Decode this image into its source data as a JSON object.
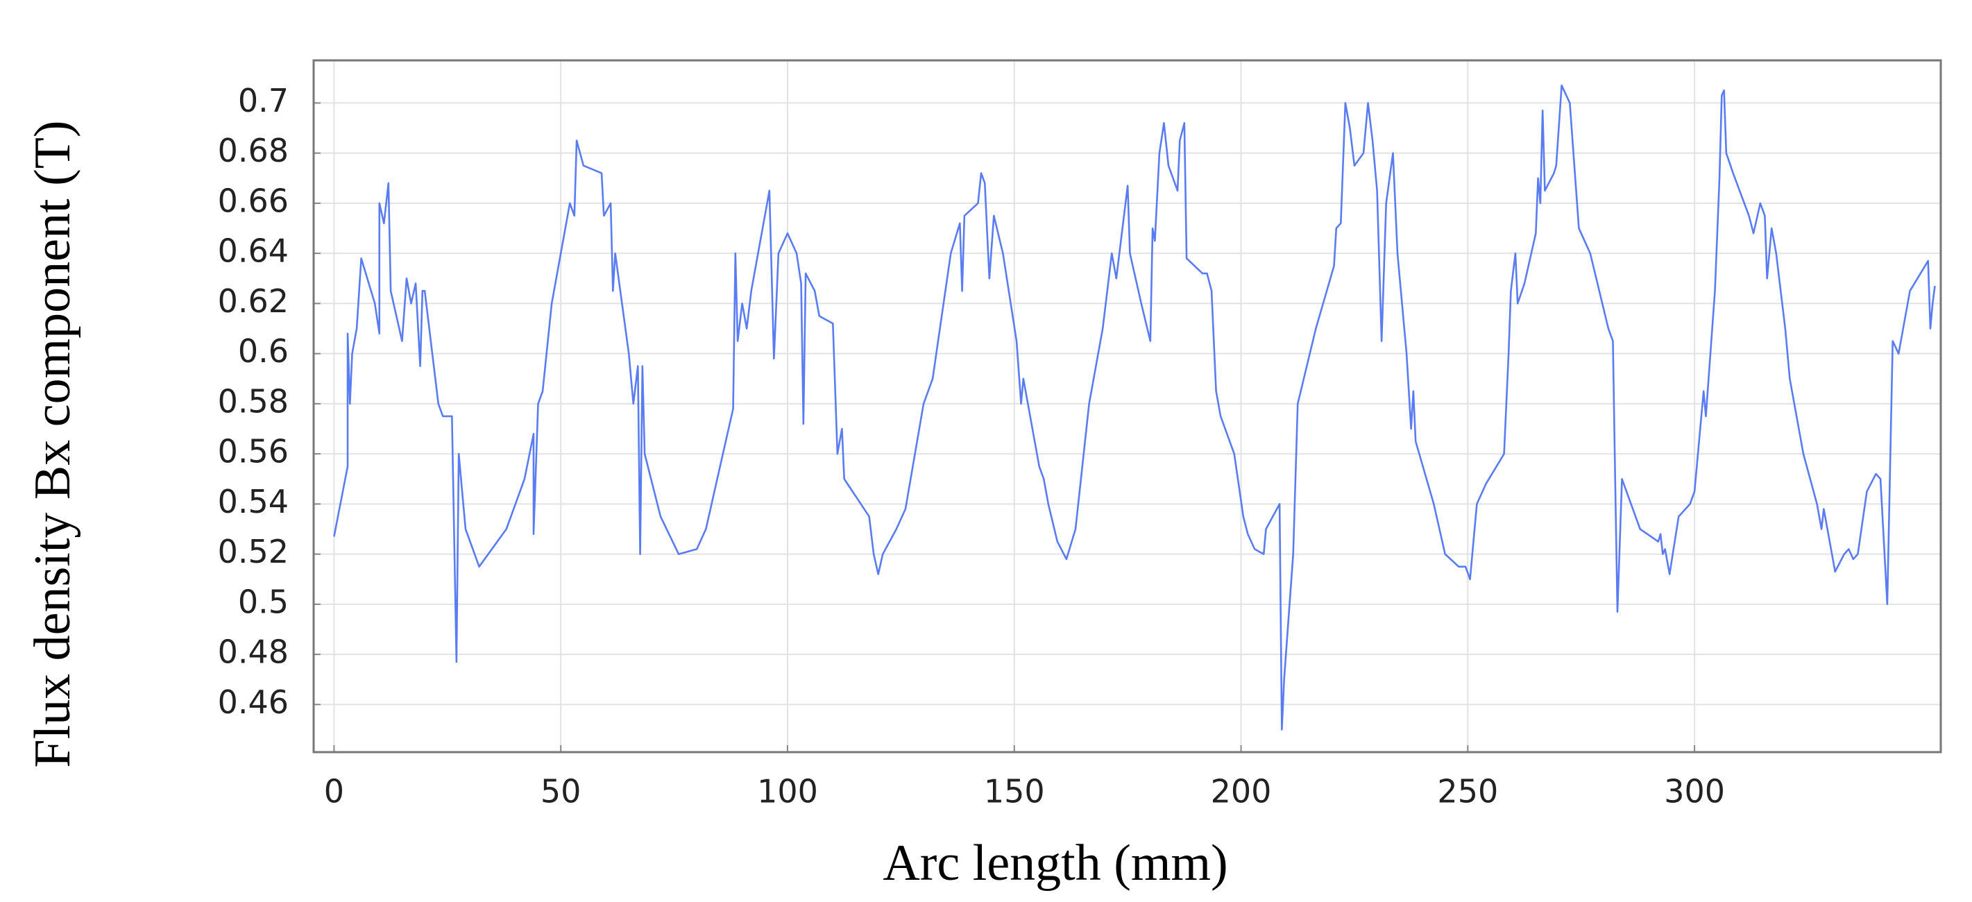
{
  "chart_data": {
    "type": "line",
    "xlabel": "Arc length (mm)",
    "ylabel": "Flux density Bx component (T)",
    "xlim": [
      -4.5,
      354.3
    ],
    "ylim": [
      0.441,
      0.717
    ],
    "xticks": [
      0,
      50,
      100,
      150,
      200,
      250,
      300
    ],
    "yticks": [
      0.46,
      0.48,
      0.5,
      0.52,
      0.54,
      0.56,
      0.58,
      0.6,
      0.62,
      0.64,
      0.66,
      0.68,
      0.7
    ],
    "grid": true,
    "series": [
      {
        "color": "#5a7cf2",
        "x": [
          0,
          3,
          3,
          3.5,
          4,
          5,
          6,
          9,
          10,
          10,
          11,
          12,
          12.5,
          15,
          16,
          17,
          18,
          19,
          19.5,
          20,
          22,
          23,
          24,
          26,
          27,
          27.5,
          29,
          32,
          38,
          42,
          44,
          44,
          45,
          46,
          48,
          52,
          53,
          53.5,
          55,
          59,
          59.5,
          61,
          61.5,
          62,
          65,
          66,
          67,
          67.5,
          68,
          68.5,
          72,
          76,
          80,
          82,
          87,
          88,
          88.5,
          89,
          90,
          91,
          92,
          96,
          97,
          98,
          100,
          102,
          103,
          103.5,
          104,
          106,
          107,
          110,
          111,
          112,
          112.5,
          118,
          119,
          120,
          121,
          124,
          126,
          130,
          132,
          134,
          136,
          138,
          138.5,
          139,
          142,
          142.7,
          143.5,
          144.5,
          145.5,
          147.5,
          150.5,
          151.5,
          152,
          155.5,
          156.5,
          157.5,
          159.5,
          161.5,
          163.5,
          166.5,
          169.5,
          171.5,
          172.5,
          175,
          175.5,
          178,
          180,
          180.5,
          181,
          182,
          183,
          184,
          186,
          186.5,
          187.5,
          188,
          191.5,
          192.5,
          193.5,
          194.5,
          195.5,
          198.5,
          200.5,
          201.5,
          203,
          205,
          205.5,
          208.5,
          209,
          209.5,
          211.5,
          212.5,
          216.5,
          220.5,
          221,
          222,
          223,
          224,
          225,
          227,
          228,
          229,
          230,
          231,
          232,
          233.5,
          234.5,
          236.5,
          237.5,
          238,
          238.5,
          242.5,
          245,
          248,
          249.5,
          250.5,
          252,
          254,
          258,
          259,
          259.5,
          260.5,
          261,
          262.5,
          265,
          265.5,
          266,
          266.5,
          267,
          269,
          269.5,
          270.7,
          272.5,
          274.5,
          277,
          281,
          282,
          282.5,
          283,
          284,
          286,
          288,
          292,
          292.5,
          293,
          293.5,
          294.5,
          296.5,
          299,
          300,
          302,
          302.5,
          303.5,
          304.5,
          305.5,
          306,
          306.5,
          307,
          308.5,
          312,
          313,
          314.5,
          315.5,
          316,
          317,
          318,
          320,
          321,
          324,
          327,
          328,
          328.5,
          331,
          333,
          334,
          335,
          336,
          338,
          340,
          341,
          342.5,
          343.7,
          345,
          347.5,
          351.5,
          352,
          352.5,
          353
        ],
        "values": [
          0.527,
          0.555,
          0.608,
          0.58,
          0.6,
          0.61,
          0.638,
          0.62,
          0.608,
          0.66,
          0.652,
          0.668,
          0.625,
          0.605,
          0.63,
          0.62,
          0.628,
          0.595,
          0.625,
          0.625,
          0.595,
          0.58,
          0.575,
          0.575,
          0.477,
          0.56,
          0.53,
          0.515,
          0.53,
          0.55,
          0.568,
          0.528,
          0.58,
          0.585,
          0.62,
          0.66,
          0.655,
          0.685,
          0.675,
          0.672,
          0.655,
          0.66,
          0.625,
          0.64,
          0.6,
          0.58,
          0.595,
          0.52,
          0.595,
          0.56,
          0.535,
          0.52,
          0.522,
          0.53,
          0.57,
          0.578,
          0.64,
          0.605,
          0.62,
          0.61,
          0.625,
          0.665,
          0.598,
          0.64,
          0.648,
          0.64,
          0.628,
          0.572,
          0.632,
          0.625,
          0.615,
          0.612,
          0.56,
          0.57,
          0.55,
          0.535,
          0.52,
          0.512,
          0.52,
          0.53,
          0.538,
          0.58,
          0.59,
          0.615,
          0.64,
          0.652,
          0.625,
          0.655,
          0.66,
          0.672,
          0.668,
          0.63,
          0.655,
          0.64,
          0.605,
          0.58,
          0.59,
          0.555,
          0.55,
          0.54,
          0.525,
          0.518,
          0.53,
          0.58,
          0.61,
          0.64,
          0.63,
          0.667,
          0.64,
          0.62,
          0.605,
          0.65,
          0.645,
          0.68,
          0.692,
          0.675,
          0.665,
          0.685,
          0.692,
          0.638,
          0.632,
          0.632,
          0.625,
          0.585,
          0.575,
          0.56,
          0.535,
          0.528,
          0.522,
          0.52,
          0.53,
          0.54,
          0.45,
          0.47,
          0.52,
          0.58,
          0.61,
          0.635,
          0.65,
          0.652,
          0.7,
          0.69,
          0.675,
          0.68,
          0.7,
          0.685,
          0.665,
          0.605,
          0.66,
          0.68,
          0.64,
          0.6,
          0.57,
          0.585,
          0.565,
          0.54,
          0.52,
          0.515,
          0.515,
          0.51,
          0.54,
          0.548,
          0.56,
          0.6,
          0.625,
          0.64,
          0.62,
          0.628,
          0.648,
          0.67,
          0.66,
          0.697,
          0.665,
          0.672,
          0.675,
          0.707,
          0.7,
          0.65,
          0.64,
          0.61,
          0.605,
          0.55,
          0.497,
          0.55,
          0.54,
          0.53,
          0.525,
          0.528,
          0.52,
          0.522,
          0.512,
          0.535,
          0.54,
          0.545,
          0.585,
          0.575,
          0.6,
          0.625,
          0.67,
          0.703,
          0.705,
          0.68,
          0.672,
          0.655,
          0.648,
          0.66,
          0.655,
          0.63,
          0.65,
          0.64,
          0.61,
          0.59,
          0.56,
          0.54,
          0.53,
          0.538,
          0.513,
          0.52,
          0.522,
          0.518,
          0.52,
          0.545,
          0.552,
          0.55,
          0.5,
          0.605,
          0.6,
          0.625,
          0.637,
          0.61,
          0.62,
          0.627
        ]
      }
    ]
  }
}
